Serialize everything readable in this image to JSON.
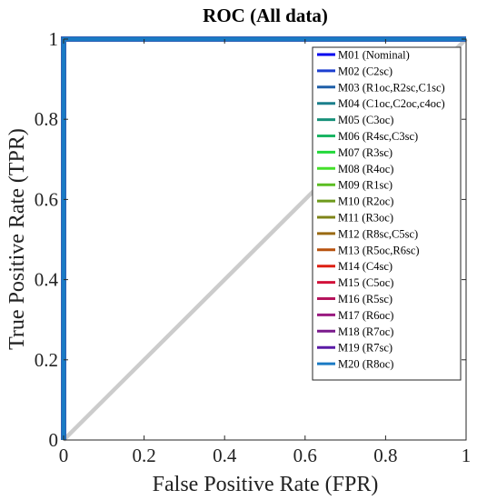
{
  "chart_data": {
    "type": "line",
    "title": "ROC (All data)",
    "xlabel": "False Positive Rate (FPR)",
    "ylabel": "True Positive Rate (TPR)",
    "xlim": [
      0,
      1
    ],
    "ylim": [
      0,
      1
    ],
    "x_ticks": [
      "0",
      "0.2",
      "0.4",
      "0.6",
      "0.8",
      "1"
    ],
    "y_ticks": [
      "0",
      "0.2",
      "0.4",
      "0.6",
      "0.8",
      "1"
    ],
    "grid": false,
    "legend_position": "top-right",
    "reference_line": {
      "x": [
        0,
        1
      ],
      "y": [
        0,
        1
      ],
      "color": "#cccccc"
    },
    "series": [
      {
        "name": "M01 (Nominal)",
        "color": "#0000ee",
        "x": [
          0,
          0,
          1
        ],
        "y": [
          0,
          1,
          1
        ]
      },
      {
        "name": "M02 (C2sc)",
        "color": "#1c3fd0",
        "x": [
          0,
          0,
          1
        ],
        "y": [
          0,
          1,
          1
        ]
      },
      {
        "name": "M03 (R1oc,R2sc,C1sc)",
        "color": "#1f5fa8",
        "x": [
          0,
          0,
          1
        ],
        "y": [
          0,
          1,
          1
        ]
      },
      {
        "name": "M04 (C1oc,C2oc,c4oc)",
        "color": "#1a7f8c",
        "x": [
          0,
          0,
          1
        ],
        "y": [
          0,
          1,
          1
        ]
      },
      {
        "name": "M05 (C3oc)",
        "color": "#17917a",
        "x": [
          0,
          0,
          1
        ],
        "y": [
          0,
          1,
          1
        ]
      },
      {
        "name": "M06 (R4sc,C3sc)",
        "color": "#1bb564",
        "x": [
          0,
          0,
          1
        ],
        "y": [
          0,
          1,
          1
        ]
      },
      {
        "name": "M07 (R3sc)",
        "color": "#22d83a",
        "x": [
          0,
          0,
          1
        ],
        "y": [
          0,
          1,
          1
        ]
      },
      {
        "name": "M08 (R4oc)",
        "color": "#44e02a",
        "x": [
          0,
          0,
          1
        ],
        "y": [
          0,
          1,
          1
        ]
      },
      {
        "name": "M09 (R1sc)",
        "color": "#5bbd22",
        "x": [
          0,
          0,
          1
        ],
        "y": [
          0,
          1,
          1
        ]
      },
      {
        "name": "M10 (R2oc)",
        "color": "#6e9a1c",
        "x": [
          0,
          0,
          1
        ],
        "y": [
          0,
          1,
          1
        ]
      },
      {
        "name": "M11 (R3oc)",
        "color": "#7f8418",
        "x": [
          0,
          0,
          1
        ],
        "y": [
          0,
          1,
          1
        ]
      },
      {
        "name": "M12 (R8sc,C5sc)",
        "color": "#9a6a12",
        "x": [
          0,
          0,
          1
        ],
        "y": [
          0,
          1,
          1
        ]
      },
      {
        "name": "M13 (R5oc,R6sc)",
        "color": "#b8520e",
        "x": [
          0,
          0,
          1
        ],
        "y": [
          0,
          1,
          1
        ]
      },
      {
        "name": "M14 (C4sc)",
        "color": "#dd1f12",
        "x": [
          0,
          0,
          1
        ],
        "y": [
          0,
          1,
          1
        ]
      },
      {
        "name": "M15 (C5oc)",
        "color": "#d2113a",
        "x": [
          0,
          0,
          1
        ],
        "y": [
          0,
          1,
          1
        ]
      },
      {
        "name": "M16 (R5sc)",
        "color": "#b5145c",
        "x": [
          0,
          0,
          1
        ],
        "y": [
          0,
          1,
          1
        ]
      },
      {
        "name": "M17 (R6oc)",
        "color": "#9a1a80",
        "x": [
          0,
          0,
          1
        ],
        "y": [
          0,
          1,
          1
        ]
      },
      {
        "name": "M18 (R7oc)",
        "color": "#7a1a8c",
        "x": [
          0,
          0,
          1
        ],
        "y": [
          0,
          1,
          1
        ]
      },
      {
        "name": "M19 (R7sc)",
        "color": "#5a1aa6",
        "x": [
          0,
          0,
          1
        ],
        "y": [
          0,
          1,
          1
        ]
      },
      {
        "name": "M20 (R8oc)",
        "color": "#1a7ac4",
        "x": [
          0,
          0,
          1
        ],
        "y": [
          0,
          1,
          1
        ]
      }
    ]
  }
}
